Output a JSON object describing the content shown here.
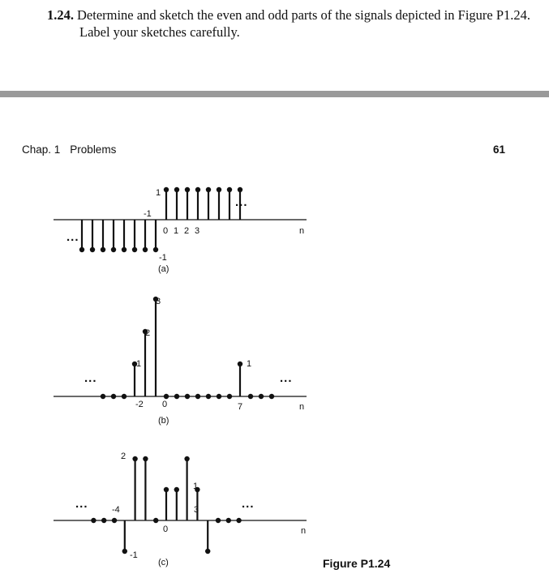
{
  "problem": {
    "number": "1.24.",
    "line1": "Determine and sketch the even and odd parts of the signals depicted in Figure P1.24.",
    "line2": "Label your sketches carefully."
  },
  "header": {
    "chapter": "Chap. 1",
    "section": "Problems",
    "page": "61"
  },
  "figure_label": "Figure P1.24",
  "panels": [
    {
      "id": "a",
      "caption": "(a)",
      "axis_label": "n",
      "ellipsis_left": "...",
      "ellipsis_right": "...",
      "ticks": [
        "0",
        "1",
        "2",
        "3"
      ],
      "value_labels": [
        "1",
        "-1",
        "-1"
      ],
      "samples": [
        {
          "n": -8,
          "v": -1
        },
        {
          "n": -7,
          "v": -1
        },
        {
          "n": -6,
          "v": -1
        },
        {
          "n": -5,
          "v": -1
        },
        {
          "n": -4,
          "v": -1
        },
        {
          "n": -3,
          "v": -1
        },
        {
          "n": -2,
          "v": -1
        },
        {
          "n": -1,
          "v": -1
        },
        {
          "n": 0,
          "v": 1
        },
        {
          "n": 1,
          "v": 1
        },
        {
          "n": 2,
          "v": 1
        },
        {
          "n": 3,
          "v": 1
        },
        {
          "n": 4,
          "v": 1
        },
        {
          "n": 5,
          "v": 1
        },
        {
          "n": 6,
          "v": 1
        },
        {
          "n": 7,
          "v": 1
        }
      ]
    },
    {
      "id": "b",
      "caption": "(b)",
      "axis_label": "n",
      "ellipsis_left": "...",
      "ellipsis_right": "...",
      "ticks": [
        "-2",
        "0",
        "7"
      ],
      "value_labels": [
        "3",
        "2",
        "1",
        "1"
      ],
      "samples": [
        {
          "n": -6,
          "v": 0
        },
        {
          "n": -5,
          "v": 0
        },
        {
          "n": -4,
          "v": 0
        },
        {
          "n": -3,
          "v": 1
        },
        {
          "n": -2,
          "v": 2
        },
        {
          "n": -1,
          "v": 3
        },
        {
          "n": 0,
          "v": 0
        },
        {
          "n": 1,
          "v": 0
        },
        {
          "n": 2,
          "v": 0
        },
        {
          "n": 3,
          "v": 0
        },
        {
          "n": 4,
          "v": 0
        },
        {
          "n": 5,
          "v": 0
        },
        {
          "n": 6,
          "v": 0
        },
        {
          "n": 7,
          "v": 1
        },
        {
          "n": 8,
          "v": 0
        },
        {
          "n": 9,
          "v": 0
        },
        {
          "n": 10,
          "v": 0
        }
      ]
    },
    {
      "id": "c",
      "caption": "(c)",
      "axis_label": "n",
      "ellipsis_left": "...",
      "ellipsis_right": "...",
      "ticks": [
        "-4",
        "0",
        "3"
      ],
      "value_labels": [
        "2",
        "1",
        "-1"
      ],
      "samples": [
        {
          "n": -7,
          "v": 0
        },
        {
          "n": -6,
          "v": 0
        },
        {
          "n": -5,
          "v": 0
        },
        {
          "n": -4,
          "v": -1
        },
        {
          "n": -3,
          "v": 2
        },
        {
          "n": -2,
          "v": 2
        },
        {
          "n": -1,
          "v": 0
        },
        {
          "n": 0,
          "v": 1
        },
        {
          "n": 1,
          "v": 1
        },
        {
          "n": 2,
          "v": 2
        },
        {
          "n": 3,
          "v": 1
        },
        {
          "n": 4,
          "v": -1
        },
        {
          "n": 5,
          "v": 0
        },
        {
          "n": 6,
          "v": 0
        },
        {
          "n": 7,
          "v": 0
        }
      ]
    }
  ]
}
